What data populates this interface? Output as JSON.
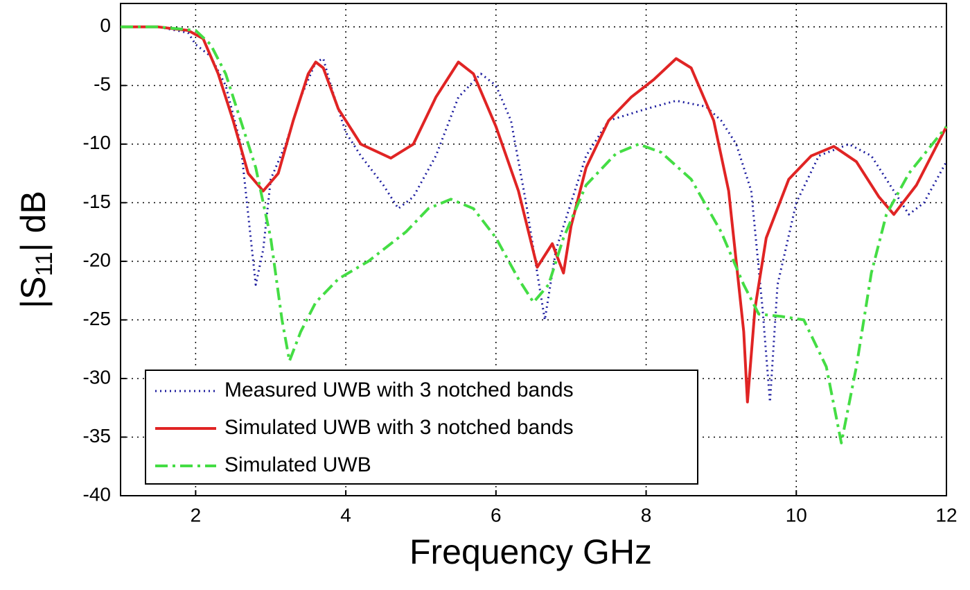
{
  "chart_data": {
    "type": "line",
    "xlabel": "Frequency GHz",
    "ylabel_parts": [
      "|S",
      "11",
      "| dB"
    ],
    "xlim": [
      1,
      12
    ],
    "ylim": [
      -40,
      2
    ],
    "xticks": [
      2,
      4,
      6,
      8,
      10,
      12
    ],
    "yticks": [
      0,
      -5,
      -10,
      -15,
      -20,
      -25,
      -30,
      -35,
      -40
    ],
    "grid": true,
    "legend": "lower left",
    "series": [
      {
        "name": "Measured UWB with 3 notched bands",
        "color": "#1c1c9e",
        "dash": "dotted",
        "x": [
          1,
          1.5,
          1.9,
          2.0,
          2.2,
          2.4,
          2.6,
          2.7,
          2.8,
          2.9,
          3.0,
          3.2,
          3.4,
          3.6,
          3.7,
          3.8,
          4.0,
          4.2,
          4.5,
          4.7,
          4.9,
          5.2,
          5.5,
          5.8,
          6.0,
          6.2,
          6.4,
          6.55,
          6.65,
          6.8,
          7.0,
          7.2,
          7.5,
          8.0,
          8.4,
          8.8,
          9.0,
          9.2,
          9.4,
          9.55,
          9.65,
          9.75,
          10.0,
          10.3,
          10.7,
          11.0,
          11.3,
          11.5,
          11.7,
          12
        ],
        "values": [
          0,
          0,
          -0.5,
          -1.5,
          -2.5,
          -5,
          -10,
          -16,
          -22,
          -19,
          -13,
          -10,
          -6,
          -3,
          -2.7,
          -5,
          -9,
          -11,
          -13.5,
          -15.5,
          -14.5,
          -11,
          -6,
          -4,
          -5,
          -8,
          -15,
          -21,
          -25,
          -19,
          -15,
          -11,
          -8,
          -7,
          -6.3,
          -6.8,
          -8,
          -10,
          -14,
          -24,
          -32,
          -22,
          -15,
          -11,
          -10,
          -11,
          -14,
          -16,
          -15,
          -11.5
        ]
      },
      {
        "name": "Simulated UWB with 3 notched bands",
        "color": "#e02424",
        "dash": "solid",
        "x": [
          1,
          1.5,
          1.9,
          2.1,
          2.3,
          2.5,
          2.7,
          2.9,
          3.1,
          3.3,
          3.5,
          3.6,
          3.7,
          3.9,
          4.2,
          4.6,
          4.9,
          5.2,
          5.5,
          5.7,
          6.0,
          6.3,
          6.55,
          6.75,
          6.9,
          7.0,
          7.2,
          7.5,
          7.8,
          8.1,
          8.4,
          8.6,
          8.9,
          9.1,
          9.3,
          9.35,
          9.45,
          9.6,
          9.9,
          10.2,
          10.5,
          10.8,
          11.1,
          11.3,
          11.6,
          12
        ],
        "values": [
          0,
          0,
          -0.3,
          -1,
          -4,
          -8,
          -12.5,
          -14,
          -12.5,
          -8,
          -4,
          -3,
          -3.5,
          -7,
          -10,
          -11.2,
          -10,
          -6,
          -3,
          -4,
          -8.5,
          -14,
          -20.5,
          -18.5,
          -21,
          -17,
          -12,
          -8,
          -6,
          -4.5,
          -2.7,
          -3.5,
          -8,
          -14,
          -26,
          -32,
          -24,
          -18,
          -13,
          -11,
          -10.2,
          -11.5,
          -14.5,
          -16,
          -13.5,
          -8.5
        ]
      },
      {
        "name": "Simulated UWB",
        "color": "#44dd44",
        "dash": "dashdot",
        "x": [
          1,
          1.5,
          2.0,
          2.2,
          2.4,
          2.6,
          2.8,
          3.0,
          3.15,
          3.25,
          3.4,
          3.6,
          3.9,
          4.3,
          4.8,
          5.1,
          5.4,
          5.7,
          6.0,
          6.3,
          6.5,
          6.7,
          6.9,
          7.2,
          7.6,
          7.9,
          8.2,
          8.6,
          9.0,
          9.3,
          9.5,
          9.8,
          10.1,
          10.4,
          10.6,
          10.8,
          11.0,
          11.2,
          11.5,
          12
        ],
        "values": [
          0,
          0,
          -0.3,
          -1.5,
          -4,
          -8,
          -12,
          -18,
          -25,
          -28.5,
          -26,
          -23.5,
          -21.5,
          -20,
          -17.5,
          -15.5,
          -14.7,
          -15.5,
          -18,
          -21.5,
          -23.5,
          -22,
          -18,
          -13.5,
          -10.8,
          -10,
          -10.7,
          -13,
          -17.5,
          -22,
          -24.5,
          -24.7,
          -25,
          -29,
          -35.5,
          -29,
          -21,
          -16,
          -12.5,
          -8.5
        ]
      }
    ]
  }
}
